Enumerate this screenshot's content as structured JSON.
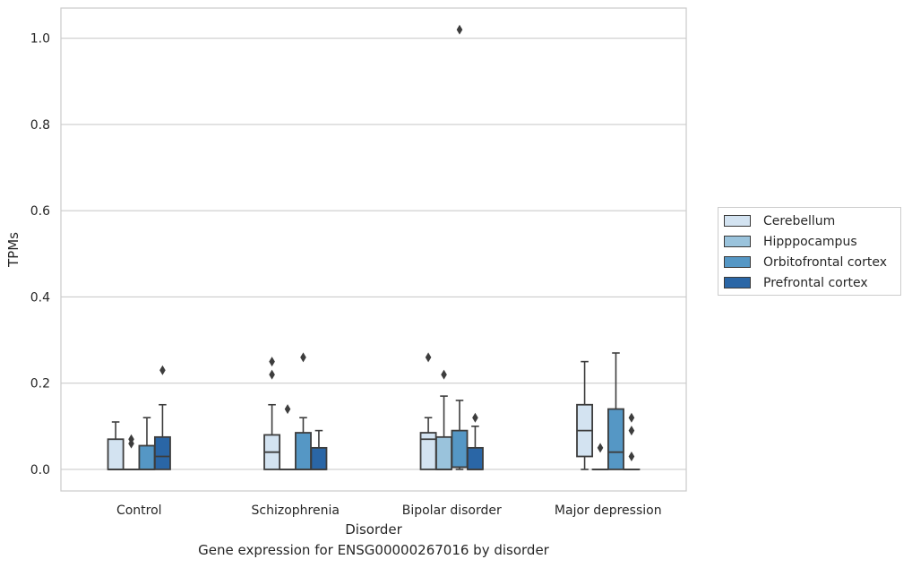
{
  "caption": "Gene expression for ENSG00000267016 by disorder",
  "chart_data": {
    "type": "box",
    "xlabel": "Disorder",
    "ylabel": "TPMs",
    "ylim": [
      -0.05,
      1.07
    ],
    "yticks": [
      "0.0",
      "0.2",
      "0.4",
      "0.6",
      "0.8",
      "1.0"
    ],
    "grid": "horizontal",
    "legend_position": "right",
    "categories": [
      "Control",
      "Schizophrenia",
      "Bipolar disorder",
      "Major depression"
    ],
    "series": [
      {
        "name": "Cerebellum",
        "color": "#d3e3f1",
        "boxes": [
          {
            "q1": 0.0,
            "median": 0.0,
            "q3": 0.07,
            "whislo": 0.0,
            "whishi": 0.11,
            "fliers": []
          },
          {
            "q1": 0.0,
            "median": 0.04,
            "q3": 0.08,
            "whislo": 0.0,
            "whishi": 0.15,
            "fliers": [
              0.22,
              0.25
            ]
          },
          {
            "q1": 0.0,
            "median": 0.07,
            "q3": 0.085,
            "whislo": 0.0,
            "whishi": 0.12,
            "fliers": [
              0.26
            ]
          },
          {
            "q1": 0.03,
            "median": 0.09,
            "q3": 0.15,
            "whislo": 0.0,
            "whishi": 0.25,
            "fliers": []
          }
        ]
      },
      {
        "name": "Hipppocampus",
        "color": "#9ac3dc",
        "boxes": [
          {
            "q1": 0.0,
            "median": 0.0,
            "q3": 0.0,
            "whislo": 0.0,
            "whishi": 0.0,
            "fliers": [
              0.06,
              0.07
            ]
          },
          {
            "q1": 0.0,
            "median": 0.0,
            "q3": 0.0,
            "whislo": 0.0,
            "whishi": 0.0,
            "fliers": [
              0.14
            ]
          },
          {
            "q1": 0.0,
            "median": 0.0,
            "q3": 0.075,
            "whislo": 0.0,
            "whishi": 0.17,
            "fliers": [
              0.22
            ]
          },
          {
            "q1": 0.0,
            "median": 0.0,
            "q3": 0.0,
            "whislo": 0.0,
            "whishi": 0.0,
            "fliers": [
              0.05
            ]
          }
        ]
      },
      {
        "name": "Orbitofrontal cortex",
        "color": "#5597c5",
        "boxes": [
          {
            "q1": 0.0,
            "median": 0.0,
            "q3": 0.055,
            "whislo": 0.0,
            "whishi": 0.12,
            "fliers": []
          },
          {
            "q1": 0.0,
            "median": 0.0,
            "q3": 0.085,
            "whislo": 0.0,
            "whishi": 0.12,
            "fliers": [
              0.26
            ]
          },
          {
            "q1": 0.005,
            "median": 0.005,
            "q3": 0.09,
            "whislo": 0.0,
            "whishi": 0.16,
            "fliers": [
              1.02
            ]
          },
          {
            "q1": 0.0,
            "median": 0.04,
            "q3": 0.14,
            "whislo": 0.0,
            "whishi": 0.27,
            "fliers": []
          }
        ]
      },
      {
        "name": "Prefrontal cortex",
        "color": "#2a66a6",
        "boxes": [
          {
            "q1": 0.0,
            "median": 0.03,
            "q3": 0.075,
            "whislo": 0.0,
            "whishi": 0.15,
            "fliers": [
              0.23
            ]
          },
          {
            "q1": 0.0,
            "median": 0.0,
            "q3": 0.05,
            "whislo": 0.0,
            "whishi": 0.09,
            "fliers": []
          },
          {
            "q1": 0.0,
            "median": 0.0,
            "q3": 0.05,
            "whislo": 0.0,
            "whishi": 0.1,
            "fliers": [
              0.12
            ]
          },
          {
            "q1": 0.0,
            "median": 0.0,
            "q3": 0.0,
            "whislo": 0.0,
            "whishi": 0.0,
            "fliers": [
              0.03,
              0.09,
              0.12
            ]
          }
        ]
      }
    ]
  }
}
